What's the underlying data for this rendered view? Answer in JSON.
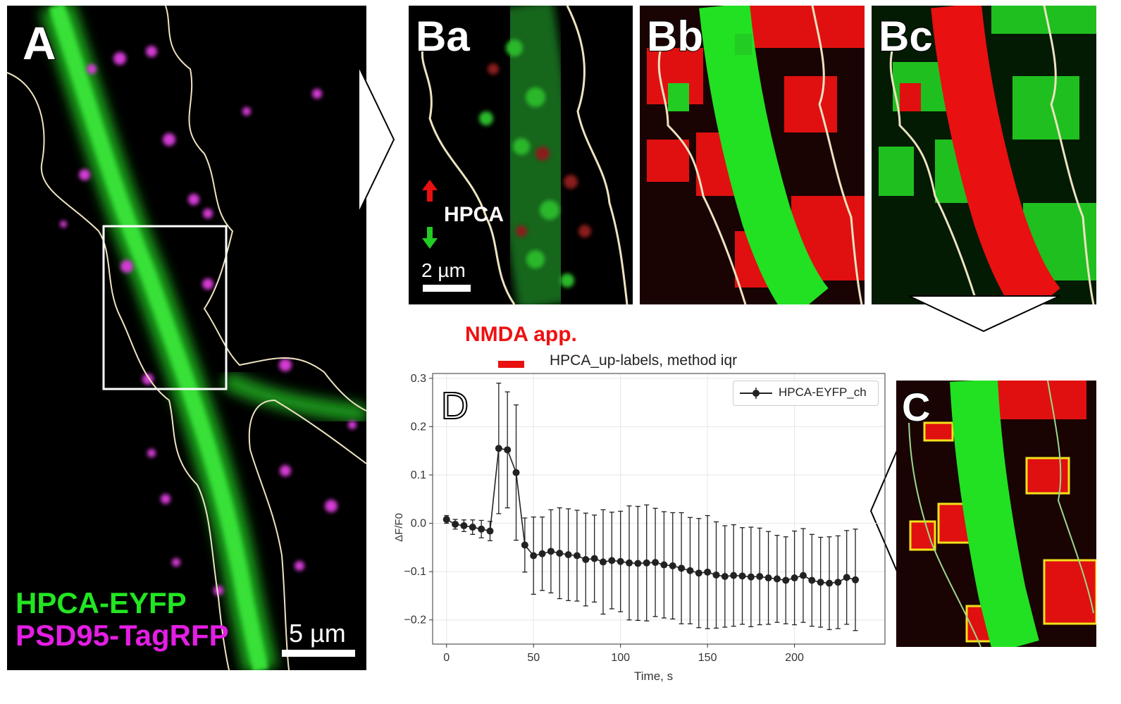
{
  "panels": {
    "a": {
      "label": "A"
    },
    "ba": {
      "label": "Ba"
    },
    "bb": {
      "label": "Bb"
    },
    "bc": {
      "label": "Bc"
    },
    "c": {
      "label": "C"
    },
    "d": {
      "label": "D"
    }
  },
  "legend_a": {
    "line1": "HPCA-EYFP",
    "line2": "PSD95-TagRFP"
  },
  "scalebars": {
    "a": "5 µm",
    "ba": "2 µm"
  },
  "hpca_arrow_label": "HPCA",
  "nmda_label": "NMDA app.",
  "colors": {
    "green": "#22e622",
    "magenta": "#e41ee4",
    "red": "#e81010",
    "outline": "#ede3c0",
    "yellow": "#f2e21a"
  },
  "chart_data": {
    "type": "line",
    "title": "HPCA_up-labels, method iqr",
    "xlabel": "Time, s",
    "ylabel": "ΔF/F0",
    "xlim": [
      -8,
      252
    ],
    "ylim": [
      -0.25,
      0.31
    ],
    "xticks": [
      0,
      50,
      100,
      150,
      200
    ],
    "yticks": [
      -0.2,
      -0.1,
      0.0,
      0.1,
      0.2,
      0.3
    ],
    "ytick_labels": [
      "−0.2",
      "−0.1",
      "0.0",
      "0.1",
      "0.2",
      "0.3"
    ],
    "grid": true,
    "legend_position": "top-right",
    "series": [
      {
        "name": "HPCA-EYFP_ch",
        "x": [
          0,
          5,
          10,
          15,
          20,
          25,
          30,
          35,
          40,
          45,
          50,
          55,
          60,
          65,
          70,
          75,
          80,
          85,
          90,
          95,
          100,
          105,
          110,
          115,
          120,
          125,
          130,
          135,
          140,
          145,
          150,
          155,
          160,
          165,
          170,
          175,
          180,
          185,
          190,
          195,
          200,
          205,
          210,
          215,
          220,
          225,
          230,
          235
        ],
        "y": [
          0.008,
          -0.002,
          -0.005,
          -0.008,
          -0.012,
          -0.016,
          0.155,
          0.152,
          0.105,
          -0.045,
          -0.067,
          -0.063,
          -0.058,
          -0.062,
          -0.065,
          -0.067,
          -0.075,
          -0.073,
          -0.08,
          -0.077,
          -0.079,
          -0.082,
          -0.083,
          -0.082,
          -0.081,
          -0.086,
          -0.088,
          -0.093,
          -0.098,
          -0.103,
          -0.101,
          -0.107,
          -0.11,
          -0.108,
          -0.109,
          -0.111,
          -0.11,
          -0.113,
          -0.115,
          -0.118,
          -0.113,
          -0.108,
          -0.118,
          -0.122,
          -0.124,
          -0.122,
          -0.112,
          -0.117
        ],
        "err": [
          0.008,
          0.01,
          0.012,
          0.015,
          0.018,
          0.02,
          0.135,
          0.12,
          0.14,
          0.056,
          0.08,
          0.076,
          0.086,
          0.094,
          0.095,
          0.094,
          0.096,
          0.09,
          0.108,
          0.1,
          0.104,
          0.118,
          0.118,
          0.12,
          0.112,
          0.11,
          0.11,
          0.115,
          0.11,
          0.113,
          0.117,
          0.11,
          0.105,
          0.105,
          0.1,
          0.103,
          0.1,
          0.096,
          0.09,
          0.09,
          0.097,
          0.097,
          0.095,
          0.093,
          0.096,
          0.096,
          0.097,
          0.105
        ],
        "color": "#222222"
      }
    ]
  }
}
